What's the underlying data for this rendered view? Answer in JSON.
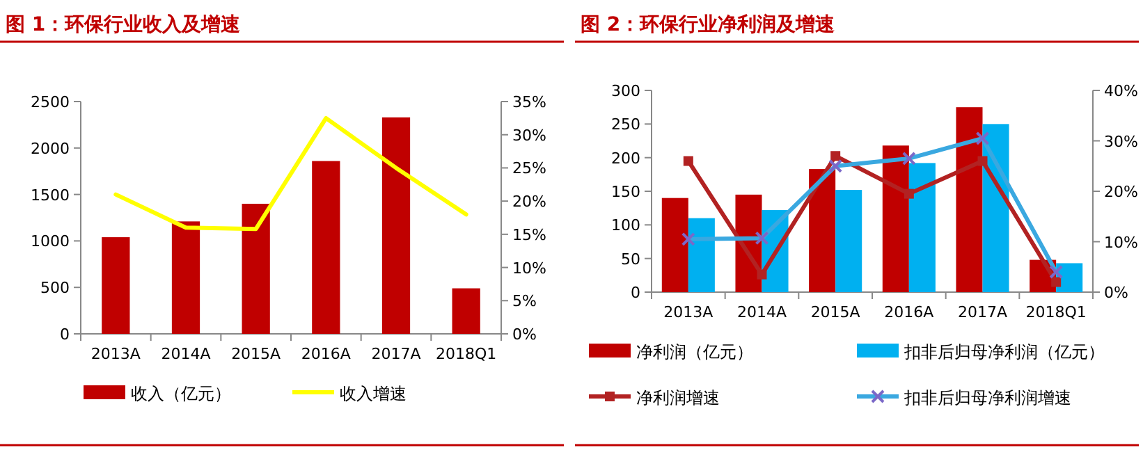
{
  "chart_data": [
    {
      "type": "bar",
      "title": "图 1：环保行业收入及增速",
      "categories": [
        "2013A",
        "2014A",
        "2015A",
        "2016A",
        "2017A",
        "2018Q1"
      ],
      "series": [
        {
          "name": "收入（亿元）",
          "color": "#c00000",
          "values": [
            1040,
            1210,
            1400,
            1860,
            2330,
            490
          ]
        },
        {
          "name": "收入增速",
          "type": "line",
          "axis": "y2",
          "color": "#ffff00",
          "marker": "none",
          "values": [
            21,
            16,
            15.8,
            32.5,
            25,
            18
          ]
        }
      ],
      "ylim": [
        0,
        2500
      ],
      "yticks": [
        0,
        500,
        1000,
        1500,
        2000,
        2500
      ],
      "y2lim": [
        0,
        35
      ],
      "y2ticks": [
        {
          "value": 0,
          "label": "0%"
        },
        {
          "value": 5,
          "label": "5%"
        },
        {
          "value": 10,
          "label": "10%"
        },
        {
          "value": 15,
          "label": "15%"
        },
        {
          "value": 20,
          "label": "20%"
        },
        {
          "value": 25,
          "label": "25%"
        },
        {
          "value": 30,
          "label": "30%"
        },
        {
          "value": 35,
          "label": "35%"
        }
      ],
      "grid": false,
      "legend": "bottom"
    },
    {
      "type": "bar",
      "title": "图 2：环保行业净利润及增速",
      "categories": [
        "2013A",
        "2014A",
        "2015A",
        "2016A",
        "2017A",
        "2018Q1"
      ],
      "series": [
        {
          "name": "净利润（亿元）",
          "color": "#c00000",
          "values": [
            140,
            145,
            183,
            218,
            275,
            48
          ]
        },
        {
          "name": "扣非后归母净利润（亿元）",
          "color": "#00b0f0",
          "values": [
            110,
            122,
            152,
            192,
            250,
            43
          ]
        },
        {
          "name": "净利润增速",
          "type": "line",
          "axis": "y2",
          "color": "#b22222",
          "marker": "square",
          "values": [
            26,
            3.5,
            27,
            19.5,
            26,
            2
          ]
        },
        {
          "name": "扣非后归母净利润增速",
          "type": "line",
          "axis": "y2",
          "color": "#3aa8e0",
          "marker": "cross",
          "values": [
            10.5,
            10.7,
            25,
            26.5,
            30.5,
            4
          ]
        }
      ],
      "ylim": [
        0,
        300
      ],
      "yticks": [
        0,
        50,
        100,
        150,
        200,
        250,
        300
      ],
      "y2lim": [
        0,
        40
      ],
      "y2ticks": [
        {
          "value": 0,
          "label": "0%"
        },
        {
          "value": 10,
          "label": "10%"
        },
        {
          "value": 20,
          "label": "20%"
        },
        {
          "value": 30,
          "label": "30%"
        },
        {
          "value": 40,
          "label": "40%"
        }
      ],
      "grid": false,
      "legend": "bottom"
    }
  ]
}
